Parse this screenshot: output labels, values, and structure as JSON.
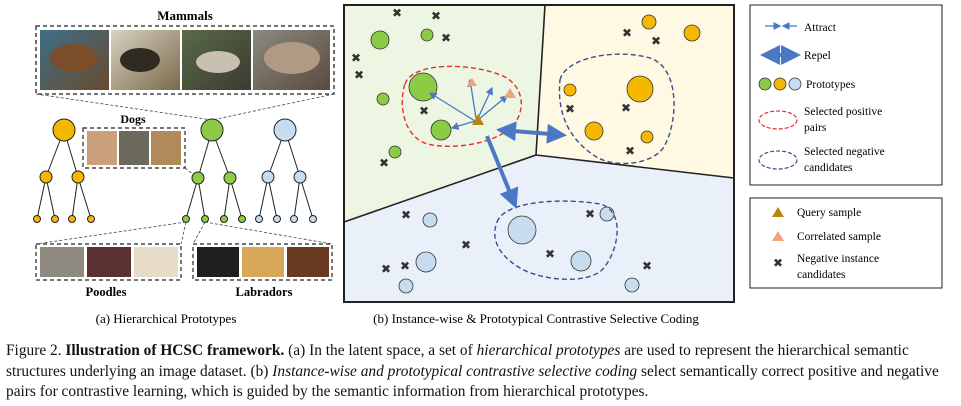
{
  "panel_a": {
    "mammals_label": "Mammals",
    "dogs_label": "Dogs",
    "poodles_label": "Poodles",
    "labradors_label": "Labradors",
    "subcaption": "(a) Hierarchical Prototypes"
  },
  "panel_b": {
    "subcaption": "(b) Instance-wise & Prototypical Contrastive Selective Coding"
  },
  "legend_top": {
    "attract": "Attract",
    "repel": "Repel",
    "prototypes": "Prototypes",
    "positive_1": "Selected positive",
    "positive_2": "pairs",
    "negative_1": "Selected negative",
    "negative_2": "candidates"
  },
  "legend_bottom": {
    "query": "Query sample",
    "correlated": "Correlated sample",
    "neg_inst_1": "Negative instance",
    "neg_inst_2": "candidates"
  },
  "colors": {
    "gold": "#F5B800",
    "green": "#8CCB45",
    "light_blue": "#C8DCF0",
    "arrow_blue": "#4A78C4",
    "positive_red": "#E03030",
    "negative_navy": "#3A4E8C",
    "region_green": "#EDF5E3",
    "region_yellow": "#FFF9E4",
    "region_blue": "#E9F0FA"
  },
  "caption": {
    "prefix": "Figure 2. ",
    "title": "Illustration of HCSC framework.",
    "part1": " (a) In the latent space, a set of ",
    "italic1": "hierarchical prototypes",
    "part2": " are used to represent the hierarchical semantic structures underlying an image dataset. (b) ",
    "italic2": "Instance-wise and prototypical contrastive selective coding",
    "part3": " select semantically correct positive and negative pairs for contrastive learning, which is guided by the semantic information from hierarchical prototypes."
  }
}
